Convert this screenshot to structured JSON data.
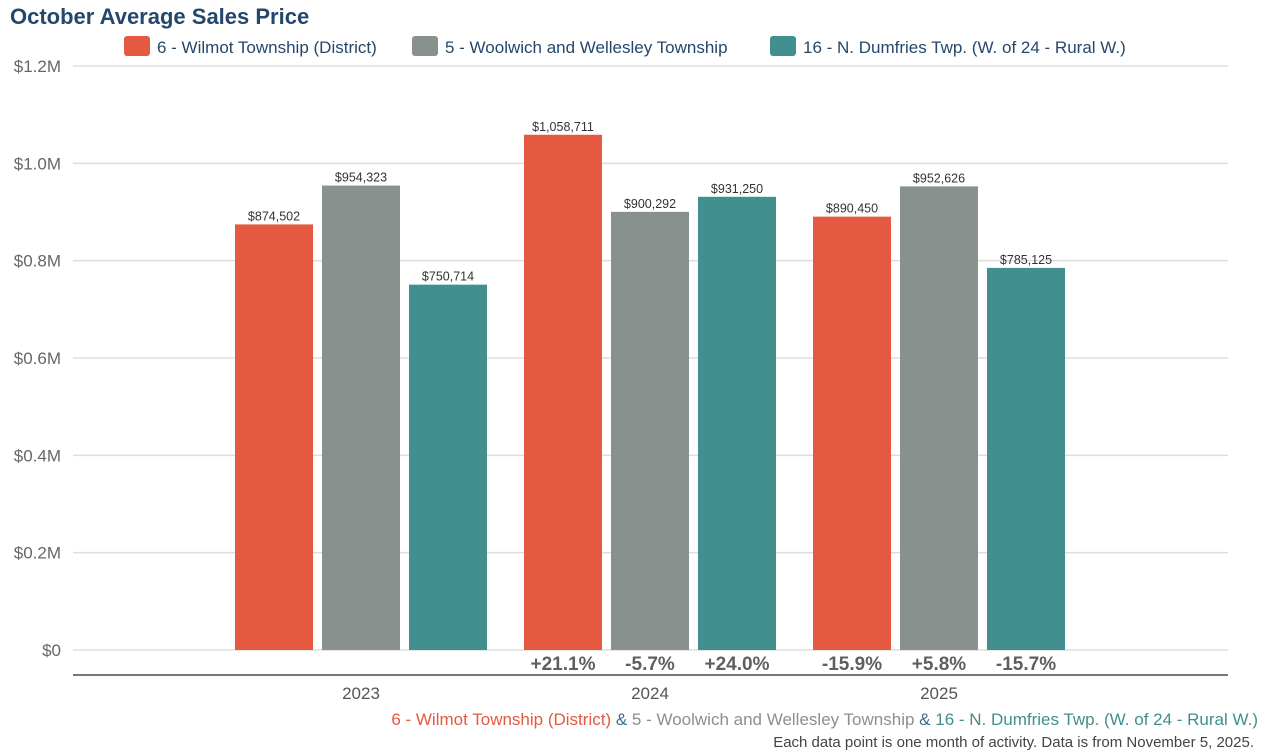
{
  "chart_data": {
    "type": "bar",
    "title": "October Average Sales Price",
    "xlabel": "",
    "ylabel": "",
    "ylim": [
      0,
      1200000
    ],
    "yticks": [
      {
        "value": 0,
        "label": "$0"
      },
      {
        "value": 200000,
        "label": "$0.2M"
      },
      {
        "value": 400000,
        "label": "$0.4M"
      },
      {
        "value": 600000,
        "label": "$0.6M"
      },
      {
        "value": 800000,
        "label": "$0.8M"
      },
      {
        "value": 1000000,
        "label": "$1.0M"
      },
      {
        "value": 1200000,
        "label": "$1.2M"
      }
    ],
    "grid": true,
    "legend_position": "top",
    "categories": [
      "2023",
      "2024",
      "2025"
    ],
    "series": [
      {
        "name": "6 - Wilmot Township (District)",
        "color": "#e45940",
        "values": [
          874502,
          1058711,
          890450
        ],
        "value_labels": [
          "$874,502",
          "$1,058,711",
          "$890,450"
        ],
        "change_labels": [
          null,
          "+21.1%",
          "-15.9%"
        ]
      },
      {
        "name": "5 - Woolwich and Wellesley Township",
        "color": "#89918e",
        "values": [
          954323,
          900292,
          952626
        ],
        "value_labels": [
          "$954,323",
          "$900,292",
          "$952,626"
        ],
        "change_labels": [
          null,
          "-5.7%",
          "+5.8%"
        ]
      },
      {
        "name": "16 - N. Dumfries Twp. (W. of 24 - Rural W.)",
        "color": "#418f8e",
        "values": [
          750714,
          931250,
          785125
        ],
        "value_labels": [
          "$750,714",
          "$931,250",
          "$785,125"
        ],
        "change_labels": [
          null,
          "+24.0%",
          "-15.7%"
        ]
      }
    ],
    "caption": {
      "parts": [
        {
          "text": "6 - Wilmot Township (District)",
          "color": "#e45940"
        },
        {
          "text": " & ",
          "color": "#3b6a8f"
        },
        {
          "text": "5 - Woolwich and Wellesley Township",
          "color": "#89918e"
        },
        {
          "text": " & ",
          "color": "#3b6a8f"
        },
        {
          "text": "16 - N. Dumfries Twp. (W. of 24 - Rural W.)",
          "color": "#418f8e"
        }
      ]
    },
    "note": "Each data point is one month of activity. Data is from November 5, 2025."
  }
}
